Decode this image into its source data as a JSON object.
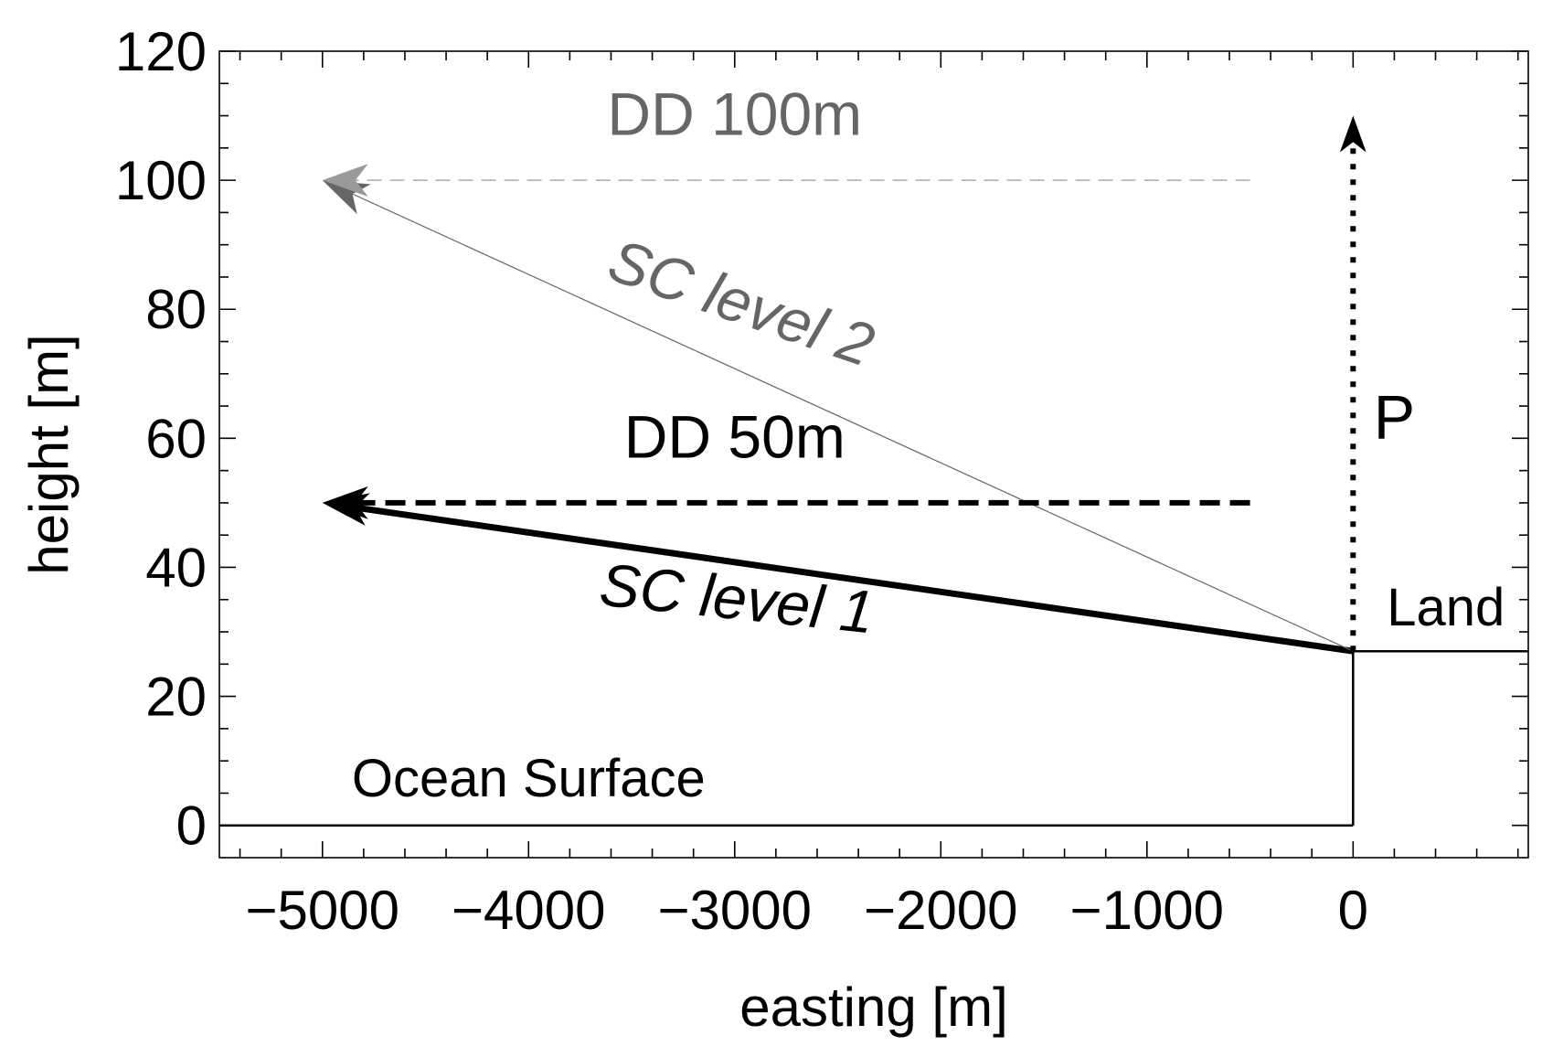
{
  "chart_data": {
    "type": "line",
    "title": "",
    "xlabel": "easting [m]",
    "ylabel": "height [m]",
    "xlim": [
      -5500,
      850
    ],
    "ylim": [
      -5,
      120
    ],
    "xticks": [
      -5000,
      -4000,
      -3000,
      -2000,
      -1000,
      0
    ],
    "xtick_labels": [
      "−5000",
      "−4000",
      "−3000",
      "−2000",
      "−1000",
      "0"
    ],
    "yticks": [
      0,
      20,
      40,
      60,
      80,
      100,
      120
    ],
    "ytick_labels": [
      "0",
      "20",
      "40",
      "60",
      "80",
      "100",
      "120"
    ],
    "grid": false,
    "colors": {
      "black": "#000000",
      "gray": "#666666",
      "light_gray": "#999999"
    },
    "series": [
      {
        "name": "Ocean Surface",
        "style": "solid",
        "color": "#000000",
        "points": [
          [
            -5500,
            0
          ],
          [
            0,
            0
          ]
        ]
      },
      {
        "name": "Land",
        "style": "solid",
        "color": "#000000",
        "points": [
          [
            0,
            0
          ],
          [
            0,
            27
          ],
          [
            850,
            27
          ]
        ]
      },
      {
        "name": "SC level 1",
        "style": "solid-thick-arrow",
        "color": "#000000",
        "points": [
          [
            0,
            27
          ],
          [
            -5000,
            50
          ]
        ]
      },
      {
        "name": "SC level 2",
        "style": "solid-thin-arrow",
        "color": "#666666",
        "points": [
          [
            0,
            27
          ],
          [
            -5000,
            100
          ]
        ]
      },
      {
        "name": "DD 50m",
        "style": "dashed-thick-arrow",
        "color": "#000000",
        "points": [
          [
            -500,
            50
          ],
          [
            -5000,
            50
          ]
        ]
      },
      {
        "name": "DD 100m",
        "style": "dashed-thin-arrow",
        "color": "#999999",
        "points": [
          [
            -500,
            100
          ],
          [
            -5000,
            100
          ]
        ]
      },
      {
        "name": "P",
        "style": "dotted-arrow",
        "color": "#000000",
        "points": [
          [
            0,
            27
          ],
          [
            0,
            110
          ]
        ]
      }
    ],
    "annotations": [
      {
        "text": "DD 100m",
        "x": -3000,
        "y": 107,
        "color": "#666666",
        "italic": false,
        "angle": 0
      },
      {
        "text": "SC level 2",
        "x": -3000,
        "y": 78,
        "color": "#666666",
        "italic": true,
        "angle": 19
      },
      {
        "text": "DD 50m",
        "x": -3000,
        "y": 57,
        "color": "#000000",
        "italic": false,
        "angle": 0
      },
      {
        "text": "SC level 1",
        "x": -3000,
        "y": 32,
        "color": "#000000",
        "italic": true,
        "angle": 6
      },
      {
        "text": "P",
        "x": 200,
        "y": 60,
        "color": "#000000",
        "italic": false,
        "angle": 0
      },
      {
        "text": "Land",
        "x": 450,
        "y": 31,
        "color": "#000000",
        "italic": false,
        "angle": 0
      },
      {
        "text": "Ocean Surface",
        "x": -4000,
        "y": 4.5,
        "color": "#000000",
        "italic": false,
        "angle": 0
      }
    ]
  }
}
